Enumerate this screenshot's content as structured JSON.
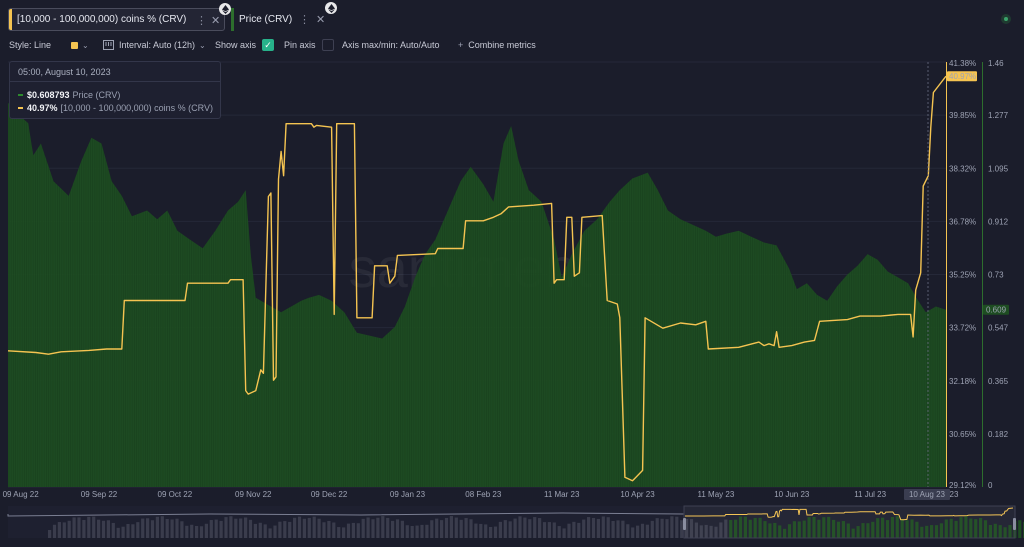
{
  "tabs": [
    {
      "label": "[10,000 - 100,000,000) coins % (CRV)",
      "accent": "#f5c451"
    },
    {
      "label": "Price (CRV)",
      "accent": "#2d6e2d"
    }
  ],
  "toolbar": {
    "style_label": "Style: Line",
    "interval_label": "Interval: Auto (12h)",
    "show_axis_label": "Show axis",
    "pin_axis_label": "Pin axis",
    "axis_maxmin_label": "Axis max/min: Auto/Auto",
    "combine_label": "Combine metrics"
  },
  "tooltip": {
    "date": "05:00, August 10, 2023",
    "rows": [
      {
        "value": "$0.608793",
        "name": "Price (CRV)",
        "color": "#2d8a2d"
      },
      {
        "value": "40.97%",
        "name": "[10,000 - 100,000,000) coins % (CRV)",
        "color": "#f5c451"
      }
    ]
  },
  "chart_data": {
    "type": "line",
    "x_range": [
      "2022-08-04",
      "2023-08-10"
    ],
    "x_ticks": [
      {
        "date": "2022-08-09",
        "label": "09 Aug 22"
      },
      {
        "date": "2022-09-09",
        "label": "09 Sep 22"
      },
      {
        "date": "2022-10-09",
        "label": "09 Oct 22"
      },
      {
        "date": "2022-11-09",
        "label": "09 Nov 22"
      },
      {
        "date": "2022-12-09",
        "label": "09 Dec 22"
      },
      {
        "date": "2023-01-09",
        "label": "09 Jan 23"
      },
      {
        "date": "2023-02-08",
        "label": "08 Feb 23"
      },
      {
        "date": "2023-03-11",
        "label": "11 Mar 23"
      },
      {
        "date": "2023-04-10",
        "label": "10 Apr 23"
      },
      {
        "date": "2023-05-11",
        "label": "11 May 23"
      },
      {
        "date": "2023-06-10",
        "label": "10 Jun 23"
      },
      {
        "date": "2023-07-11",
        "label": "11 Jul 23"
      }
    ],
    "x_highlight_label": "10 Aug 23",
    "x_highlight_extra": "23",
    "pct_axis": {
      "min": 29.12,
      "max": 41.38,
      "ticks": [
        "41.38%",
        "39.85%",
        "38.32%",
        "36.78%",
        "35.25%",
        "33.72%",
        "32.18%",
        "30.65%",
        "29.12%"
      ],
      "current": "40.97%",
      "current_value": 40.97
    },
    "price_axis": {
      "min": 0,
      "max": 1.46,
      "ticks": [
        "1.46",
        "1.277",
        "1.095",
        "0.912",
        "0.73",
        "0.547",
        "0.365",
        "0.182",
        "0"
      ],
      "current": "0.609",
      "current_value": 0.609
    },
    "watermark": "santiment",
    "series": [
      {
        "name": "[10,000 - 100,000,000) coins % (CRV)",
        "type": "line",
        "axis": "pct",
        "color": "#f5c451",
        "points": [
          [
            "2022-08-04",
            33.05
          ],
          [
            "2022-08-15",
            33.0
          ],
          [
            "2022-08-20",
            32.95
          ],
          [
            "2022-08-25",
            33.02
          ],
          [
            "2022-09-05",
            33.06
          ],
          [
            "2022-09-12",
            33.1
          ],
          [
            "2022-09-18",
            33.1
          ],
          [
            "2022-09-19",
            34.5
          ],
          [
            "2022-10-13",
            34.5
          ],
          [
            "2022-10-14",
            35.0
          ],
          [
            "2022-10-30",
            35.0
          ],
          [
            "2022-10-31",
            35.1
          ],
          [
            "2022-11-05",
            35.1
          ],
          [
            "2022-11-06",
            31.9
          ],
          [
            "2022-11-07",
            31.8
          ],
          [
            "2022-11-10",
            31.9
          ],
          [
            "2022-11-12",
            32.5
          ],
          [
            "2022-11-13",
            32.4
          ],
          [
            "2022-11-15",
            37.5
          ],
          [
            "2022-11-16",
            37.6
          ],
          [
            "2022-11-17",
            32.2
          ],
          [
            "2022-11-18",
            32.3
          ],
          [
            "2022-11-19",
            38.0
          ],
          [
            "2022-11-20",
            38.8
          ],
          [
            "2022-11-21",
            38.1
          ],
          [
            "2022-11-22",
            39.6
          ],
          [
            "2022-12-02",
            39.6
          ],
          [
            "2022-12-03",
            39.5
          ],
          [
            "2022-12-04",
            39.55
          ],
          [
            "2022-12-10",
            39.5
          ],
          [
            "2022-12-11",
            34.1
          ],
          [
            "2022-12-12",
            39.6
          ],
          [
            "2022-12-19",
            39.6
          ],
          [
            "2022-12-20",
            34.0
          ],
          [
            "2022-12-26",
            34.0
          ],
          [
            "2022-12-27",
            35.5
          ],
          [
            "2023-01-01",
            35.5
          ],
          [
            "2023-01-02",
            35.0
          ],
          [
            "2023-01-04",
            35.2
          ],
          [
            "2023-01-05",
            35.8
          ],
          [
            "2023-01-20",
            35.85
          ],
          [
            "2023-01-21",
            36.0
          ],
          [
            "2023-01-31",
            36.0
          ],
          [
            "2023-02-01",
            36.8
          ],
          [
            "2023-02-08",
            36.8
          ],
          [
            "2023-02-12",
            36.9
          ],
          [
            "2023-02-15",
            37.0
          ],
          [
            "2023-02-18",
            37.2
          ],
          [
            "2023-02-28",
            37.25
          ],
          [
            "2023-03-07",
            37.3
          ],
          [
            "2023-03-08",
            35.0
          ],
          [
            "2023-03-09",
            35.1
          ],
          [
            "2023-03-12",
            35.1
          ],
          [
            "2023-03-13",
            36.9
          ],
          [
            "2023-03-15",
            36.9
          ],
          [
            "2023-03-16",
            35.2
          ],
          [
            "2023-03-18",
            35.3
          ],
          [
            "2023-03-19",
            36.9
          ],
          [
            "2023-03-27",
            36.95
          ],
          [
            "2023-03-29",
            34.5
          ],
          [
            "2023-04-02",
            34.4
          ],
          [
            "2023-04-03",
            34.0
          ],
          [
            "2023-04-05",
            29.4
          ],
          [
            "2023-04-08",
            29.3
          ],
          [
            "2023-04-12",
            29.6
          ],
          [
            "2023-04-13",
            34.0
          ],
          [
            "2023-04-20",
            33.7
          ],
          [
            "2023-04-27",
            33.85
          ],
          [
            "2023-05-03",
            33.8
          ],
          [
            "2023-05-07",
            33.9
          ],
          [
            "2023-05-08",
            33.1
          ],
          [
            "2023-05-20",
            33.15
          ],
          [
            "2023-05-28",
            33.3
          ],
          [
            "2023-05-30",
            33.2
          ],
          [
            "2023-06-01",
            33.25
          ],
          [
            "2023-06-03",
            33.2
          ],
          [
            "2023-06-04",
            33.6
          ],
          [
            "2023-06-05",
            33.15
          ],
          [
            "2023-06-10",
            33.2
          ],
          [
            "2023-06-15",
            33.3
          ],
          [
            "2023-06-19",
            33.35
          ],
          [
            "2023-06-21",
            33.9
          ],
          [
            "2023-07-02",
            33.95
          ],
          [
            "2023-07-07",
            34.05
          ],
          [
            "2023-07-15",
            34.05
          ],
          [
            "2023-07-22",
            34.1
          ],
          [
            "2023-07-27",
            34.1
          ],
          [
            "2023-07-28",
            33.45
          ],
          [
            "2023-07-29",
            34.8
          ],
          [
            "2023-07-31",
            35.3
          ],
          [
            "2023-08-01",
            37.8
          ],
          [
            "2023-08-03",
            38.1
          ],
          [
            "2023-08-04",
            39.5
          ],
          [
            "2023-08-05",
            40.5
          ],
          [
            "2023-08-10",
            40.97
          ]
        ]
      },
      {
        "name": "Price (CRV)",
        "type": "area",
        "axis": "price",
        "color": "#1e4d22",
        "points": [
          [
            "2022-08-04",
            1.32
          ],
          [
            "2022-08-08",
            1.28
          ],
          [
            "2022-08-12",
            1.25
          ],
          [
            "2022-08-14",
            1.14
          ],
          [
            "2022-08-17",
            1.18
          ],
          [
            "2022-08-22",
            1.05
          ],
          [
            "2022-08-28",
            1.0
          ],
          [
            "2022-09-02",
            1.12
          ],
          [
            "2022-09-06",
            1.2
          ],
          [
            "2022-09-10",
            1.18
          ],
          [
            "2022-09-14",
            1.05
          ],
          [
            "2022-09-18",
            1.0
          ],
          [
            "2022-09-22",
            0.93
          ],
          [
            "2022-09-28",
            0.95
          ],
          [
            "2022-10-02",
            0.92
          ],
          [
            "2022-10-06",
            0.95
          ],
          [
            "2022-10-10",
            0.88
          ],
          [
            "2022-10-15",
            0.85
          ],
          [
            "2022-10-20",
            0.82
          ],
          [
            "2022-10-25",
            0.88
          ],
          [
            "2022-10-30",
            0.95
          ],
          [
            "2022-11-03",
            0.98
          ],
          [
            "2022-11-06",
            1.02
          ],
          [
            "2022-11-08",
            0.8
          ],
          [
            "2022-11-10",
            0.65
          ],
          [
            "2022-11-14",
            0.63
          ],
          [
            "2022-11-20",
            0.6
          ],
          [
            "2022-11-24",
            0.62
          ],
          [
            "2022-11-28",
            0.64
          ],
          [
            "2022-12-01",
            0.65
          ],
          [
            "2022-12-05",
            0.66
          ],
          [
            "2022-12-10",
            0.64
          ],
          [
            "2022-12-15",
            0.6
          ],
          [
            "2022-12-20",
            0.53
          ],
          [
            "2022-12-25",
            0.52
          ],
          [
            "2022-12-30",
            0.51
          ],
          [
            "2023-01-04",
            0.55
          ],
          [
            "2023-01-08",
            0.62
          ],
          [
            "2023-01-12",
            0.72
          ],
          [
            "2023-01-16",
            0.8
          ],
          [
            "2023-01-20",
            0.85
          ],
          [
            "2023-01-25",
            0.95
          ],
          [
            "2023-01-30",
            1.05
          ],
          [
            "2023-02-03",
            1.1
          ],
          [
            "2023-02-08",
            1.04
          ],
          [
            "2023-02-12",
            0.98
          ],
          [
            "2023-02-16",
            1.18
          ],
          [
            "2023-02-19",
            1.24
          ],
          [
            "2023-02-22",
            1.12
          ],
          [
            "2023-02-26",
            1.02
          ],
          [
            "2023-03-03",
            0.98
          ],
          [
            "2023-03-08",
            0.85
          ],
          [
            "2023-03-11",
            0.72
          ],
          [
            "2023-03-15",
            0.8
          ],
          [
            "2023-03-20",
            0.88
          ],
          [
            "2023-03-25",
            0.92
          ],
          [
            "2023-03-30",
            0.98
          ],
          [
            "2023-04-03",
            1.02
          ],
          [
            "2023-04-08",
            1.06
          ],
          [
            "2023-04-14",
            1.08
          ],
          [
            "2023-04-18",
            1.02
          ],
          [
            "2023-04-22",
            0.95
          ],
          [
            "2023-04-27",
            0.92
          ],
          [
            "2023-05-02",
            0.9
          ],
          [
            "2023-05-07",
            0.88
          ],
          [
            "2023-05-11",
            0.86
          ],
          [
            "2023-05-15",
            0.87
          ],
          [
            "2023-05-20",
            0.88
          ],
          [
            "2023-05-25",
            0.86
          ],
          [
            "2023-05-30",
            0.84
          ],
          [
            "2023-06-04",
            0.83
          ],
          [
            "2023-06-09",
            0.75
          ],
          [
            "2023-06-12",
            0.68
          ],
          [
            "2023-06-16",
            0.7
          ],
          [
            "2023-06-20",
            0.66
          ],
          [
            "2023-06-24",
            0.64
          ],
          [
            "2023-06-28",
            0.69
          ],
          [
            "2023-07-02",
            0.73
          ],
          [
            "2023-07-06",
            0.76
          ],
          [
            "2023-07-10",
            0.8
          ],
          [
            "2023-07-14",
            0.78
          ],
          [
            "2023-07-18",
            0.74
          ],
          [
            "2023-07-22",
            0.72
          ],
          [
            "2023-07-26",
            0.7
          ],
          [
            "2023-07-30",
            0.64
          ],
          [
            "2023-08-02",
            0.6
          ],
          [
            "2023-08-06",
            0.62
          ],
          [
            "2023-08-10",
            0.609
          ]
        ]
      }
    ]
  }
}
